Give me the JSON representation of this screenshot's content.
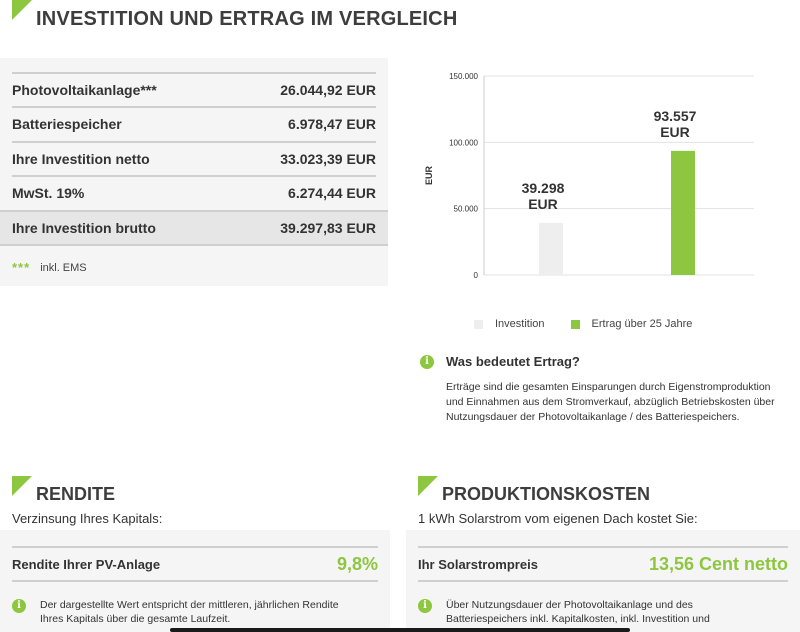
{
  "header": {
    "title": "INVESTITION UND ERTRAG IM VERGLEICH"
  },
  "costs": {
    "rows": [
      {
        "label": "Photovoltaikanlage***",
        "value": "26.044,92 EUR"
      },
      {
        "label": "Batteriespeicher",
        "value": "6.978,47 EUR"
      },
      {
        "label": "Ihre Investition netto",
        "value": "33.023,39 EUR"
      },
      {
        "label": "MwSt. 19%",
        "value": "6.274,44 EUR"
      },
      {
        "label": "Ihre Investition brutto",
        "value": "39.297,83 EUR"
      }
    ],
    "footnote_stars": "***",
    "footnote_text": "inkl. EMS"
  },
  "chart_data": {
    "type": "bar",
    "categories": [
      "Investition",
      "Ertrag über 25 Jahre"
    ],
    "values": [
      39298,
      93557
    ],
    "data_labels": [
      [
        "39.298",
        "EUR"
      ],
      [
        "93.557",
        "EUR"
      ]
    ],
    "ylabel": "EUR",
    "ylim": [
      0,
      150000
    ],
    "yticks": [
      0,
      50000,
      100000,
      150000
    ],
    "ytick_labels": [
      "0",
      "50.000",
      "100.000",
      "150.000"
    ],
    "colors": [
      "#eeeeee",
      "#8dc63f"
    ],
    "grid": true,
    "legend_position": "bottom"
  },
  "legend": {
    "items": [
      {
        "label": "Investition",
        "color": "#eeeeee"
      },
      {
        "label": "Ertrag über 25 Jahre",
        "color": "#8dc63f"
      }
    ]
  },
  "ertrag_info": {
    "icon": "info-icon",
    "title": "Was bedeutet Ertrag?",
    "text": "Erträge sind die gesamten Einsparungen durch Eigenstromproduktion und Einnahmen aus dem Stromverkauf, abzüglich Betriebskosten über Nutzungsdauer der Photovoltaikanlage / des Batteriespeichers."
  },
  "rendite": {
    "title": "RENDITE",
    "subtitle": "Verzinsung Ihres Kapitals:",
    "label": "Rendite Ihrer PV-Anlage",
    "value": "9,8%",
    "note": "Der dargestellte Wert entspricht der mittleren, jährlichen Rendite Ihres Kapitals über die gesamte Laufzeit."
  },
  "produktionskosten": {
    "title": "PRODUKTIONSKOSTEN",
    "subtitle": "1 kWh Solarstrom vom eigenen Dach kostet Sie:",
    "label": "Ihr Solarstrompreis",
    "value": "13,56 Cent netto",
    "note": "Über Nutzungsdauer der Photovoltaikanlage und des Batteriespeichers inkl. Kapitalkosten, inkl. Investition und"
  },
  "colors": {
    "accent": "#8dc63f",
    "panel_bg": "#f5f5f5",
    "text": "#333333"
  }
}
